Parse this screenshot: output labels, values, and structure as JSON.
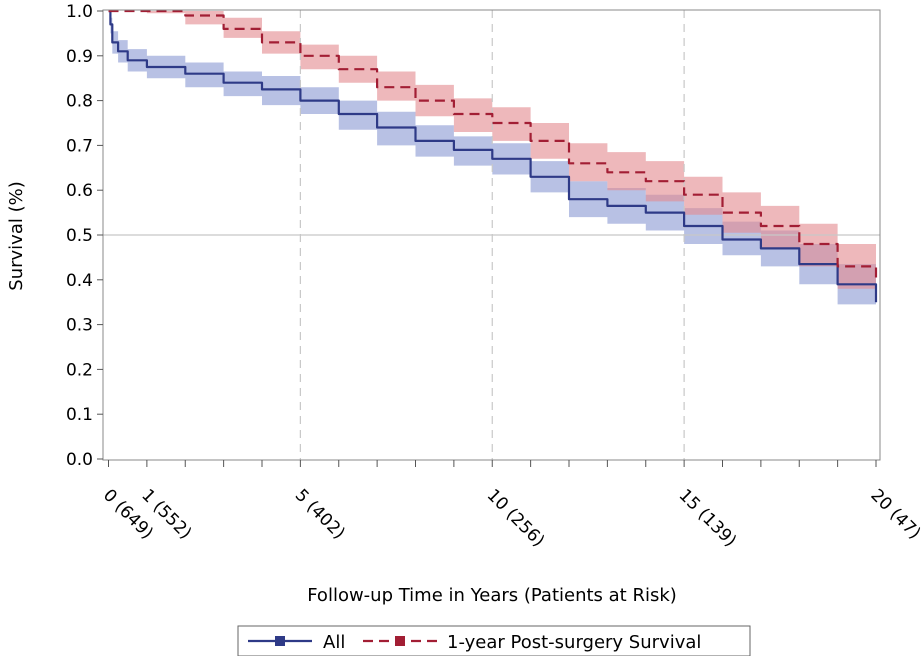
{
  "chart_data": {
    "type": "line",
    "title": "",
    "xlabel": "Follow-up Time in Years (Patients at Risk)",
    "ylabel": "Survival (%)",
    "xlim": [
      0,
      20
    ],
    "ylim": [
      0,
      1
    ],
    "yticks": [
      "0.0",
      "0.1",
      "0.2",
      "0.3",
      "0.4",
      "0.5",
      "0.6",
      "0.7",
      "0.8",
      "0.9",
      "1.0"
    ],
    "xticks": [
      {
        "x": 0,
        "label": "0 (649)"
      },
      {
        "x": 1,
        "label": "1 (552)"
      },
      {
        "x": 5,
        "label": "5 (402)"
      },
      {
        "x": 10,
        "label": "10 (256)"
      },
      {
        "x": 15,
        "label": "15 (139)"
      },
      {
        "x": 20,
        "label": "20 (47)"
      }
    ],
    "reference_lines": {
      "vertical": [
        5,
        10,
        15
      ],
      "horizontal": [
        0.5
      ]
    },
    "colors": {
      "all": "#2e3a87",
      "post_surgery": "#a21e34",
      "all_band": "#8d9bd3",
      "post_surgery_band": "#e48d92"
    },
    "series": [
      {
        "name": "All",
        "style": "solid",
        "x": [
          0,
          0.05,
          0.1,
          0.25,
          0.5,
          1,
          2,
          3,
          4,
          5,
          6,
          7,
          8,
          9,
          10,
          11,
          12,
          13,
          14,
          15,
          16,
          17,
          18,
          19,
          20
        ],
        "y": [
          1.0,
          0.97,
          0.93,
          0.91,
          0.89,
          0.875,
          0.86,
          0.84,
          0.825,
          0.8,
          0.77,
          0.74,
          0.71,
          0.69,
          0.67,
          0.63,
          0.58,
          0.565,
          0.55,
          0.52,
          0.49,
          0.47,
          0.435,
          0.39,
          0.35
        ],
        "lower": [
          1.0,
          0.95,
          0.905,
          0.885,
          0.865,
          0.85,
          0.83,
          0.81,
          0.79,
          0.77,
          0.735,
          0.7,
          0.675,
          0.655,
          0.635,
          0.595,
          0.54,
          0.525,
          0.51,
          0.48,
          0.455,
          0.43,
          0.39,
          0.345,
          0.295
        ],
        "upper": [
          1.0,
          0.985,
          0.955,
          0.935,
          0.915,
          0.9,
          0.885,
          0.865,
          0.855,
          0.83,
          0.8,
          0.775,
          0.745,
          0.72,
          0.705,
          0.665,
          0.62,
          0.605,
          0.59,
          0.56,
          0.53,
          0.51,
          0.48,
          0.435,
          0.4
        ]
      },
      {
        "name": "1-year Post-surgery Survival",
        "style": "dashed",
        "x": [
          0,
          0.5,
          1,
          2,
          3,
          4,
          5,
          6,
          7,
          8,
          9,
          10,
          11,
          12,
          13,
          14,
          15,
          16,
          17,
          18,
          19,
          20
        ],
        "y": [
          1.0,
          1.0,
          1.0,
          0.99,
          0.96,
          0.93,
          0.9,
          0.87,
          0.83,
          0.8,
          0.77,
          0.75,
          0.71,
          0.66,
          0.64,
          0.62,
          0.59,
          0.55,
          0.52,
          0.48,
          0.43,
          0.4
        ],
        "lower": [
          1.0,
          1.0,
          0.995,
          0.97,
          0.94,
          0.905,
          0.87,
          0.84,
          0.8,
          0.765,
          0.73,
          0.71,
          0.67,
          0.62,
          0.6,
          0.575,
          0.545,
          0.505,
          0.47,
          0.43,
          0.38,
          0.335
        ],
        "upper": [
          1.0,
          1.0,
          1.0,
          1.0,
          0.985,
          0.955,
          0.925,
          0.9,
          0.865,
          0.835,
          0.805,
          0.785,
          0.75,
          0.705,
          0.685,
          0.665,
          0.63,
          0.595,
          0.565,
          0.525,
          0.48,
          0.455
        ]
      }
    ],
    "legend": {
      "placement": "bottom",
      "entries": [
        "All",
        "1-year Post-surgery Survival"
      ]
    }
  }
}
